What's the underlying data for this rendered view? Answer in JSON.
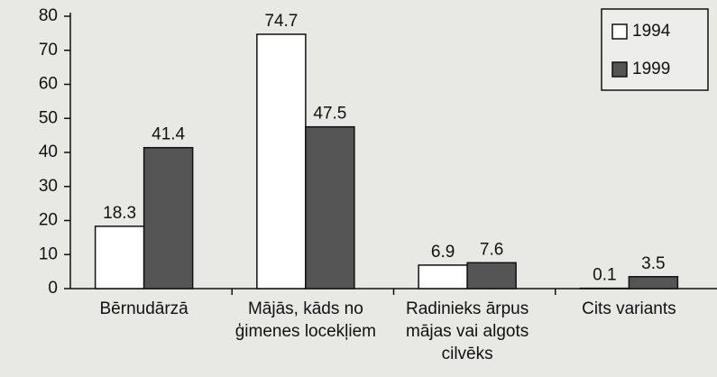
{
  "chart_data": {
    "type": "bar",
    "categories": [
      "Bērnudārzā",
      "Mājās, kāds no ģimenes locekļiem",
      "Radinieks ārpus mājas vai algots cilvēks",
      "Cits variants"
    ],
    "series": [
      {
        "name": "1994",
        "color": "#ffffff",
        "values": [
          18.3,
          74.7,
          6.9,
          0.1
        ]
      },
      {
        "name": "1999",
        "color": "#555555",
        "values": [
          41.4,
          47.5,
          7.6,
          3.5
        ]
      }
    ],
    "ylim": [
      0,
      80
    ],
    "yticks": [
      0,
      10,
      20,
      30,
      40,
      50,
      60,
      70,
      80
    ],
    "legend": "upper right"
  }
}
